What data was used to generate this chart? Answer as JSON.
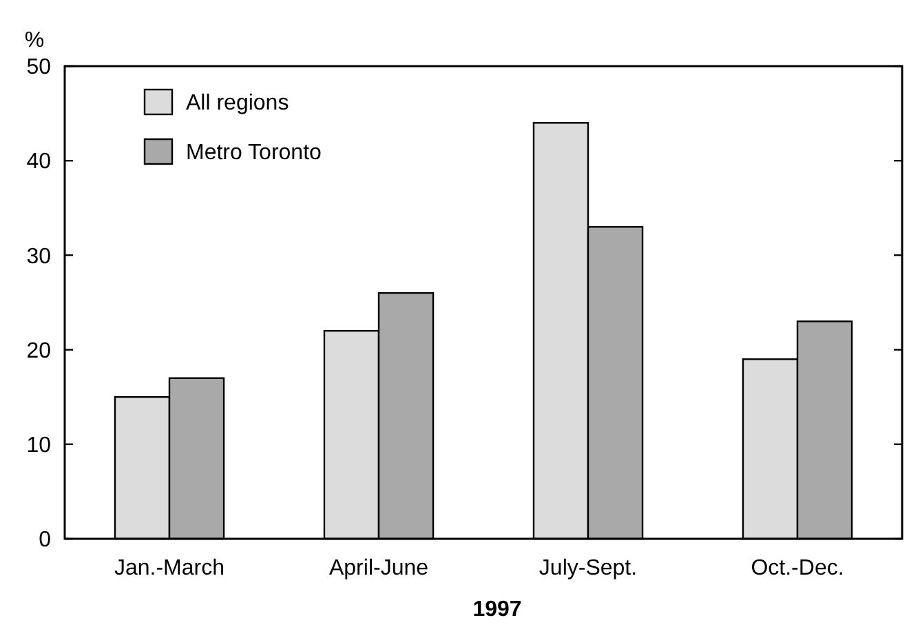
{
  "chart_data": {
    "type": "bar",
    "ylabel": "%",
    "xlabel": "1997",
    "categories": [
      "Jan.-March",
      "April-June",
      "July-Sept.",
      "Oct.-Dec."
    ],
    "series": [
      {
        "name": "All regions",
        "color": "#dcdcdc",
        "values": [
          15,
          22,
          44,
          19
        ]
      },
      {
        "name": "Metro Toronto",
        "color": "#a9a9a9",
        "values": [
          17,
          26,
          33,
          23
        ]
      }
    ],
    "ylim": [
      0,
      50
    ],
    "yticks": [
      0,
      10,
      20,
      30,
      40,
      50
    ],
    "grid": false,
    "legend": "top left"
  }
}
